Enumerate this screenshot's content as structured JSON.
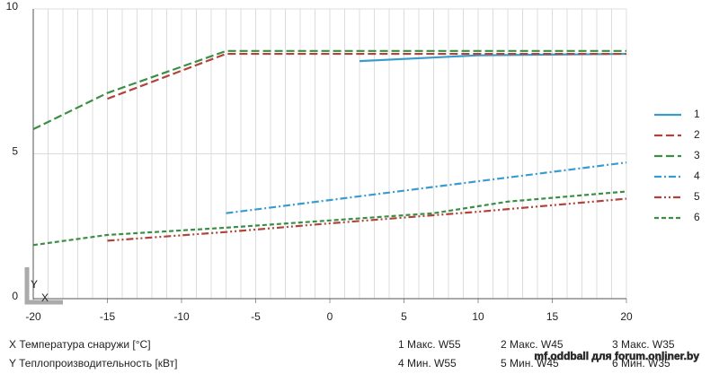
{
  "chart_data": {
    "type": "line",
    "xlim": [
      -20,
      20
    ],
    "xticks": [
      -20,
      -15,
      -10,
      -5,
      0,
      5,
      10,
      15,
      20
    ],
    "ylim": [
      0,
      10
    ],
    "yticks": [
      0,
      5,
      10
    ],
    "grid": true,
    "legend": "right",
    "series": [
      {
        "name": "1",
        "color": "#3b9ccc",
        "style": "solid",
        "x": [
          2,
          10,
          20
        ],
        "values": [
          8.2,
          8.4,
          8.45
        ]
      },
      {
        "name": "2",
        "color": "#b2433a",
        "style": "dash",
        "x": [
          -15,
          -7,
          20
        ],
        "values": [
          6.9,
          8.45,
          8.45
        ]
      },
      {
        "name": "3",
        "color": "#3a8f45",
        "style": "dash",
        "x": [
          -20,
          -15,
          -7,
          20
        ],
        "values": [
          5.85,
          7.1,
          8.55,
          8.55
        ]
      },
      {
        "name": "4",
        "color": "#3b9ccc",
        "style": "dashdot",
        "x": [
          -7,
          20
        ],
        "values": [
          2.95,
          4.7
        ]
      },
      {
        "name": "5",
        "color": "#b2433a",
        "style": "dashdotdot",
        "x": [
          -15,
          -7,
          0,
          10,
          20
        ],
        "values": [
          2.0,
          2.3,
          2.6,
          3.0,
          3.45
        ]
      },
      {
        "name": "6",
        "color": "#3a8f45",
        "style": "shortdash",
        "x": [
          -20,
          -15,
          -7,
          0,
          7,
          12,
          20
        ],
        "values": [
          1.85,
          2.2,
          2.45,
          2.7,
          2.95,
          3.35,
          3.7
        ]
      }
    ],
    "axis_marker": {
      "y": "Y",
      "x": "X"
    },
    "axis_notes": [
      "X Температура снаружи  [°C]",
      "Y Теплопроизводительность [кВт]"
    ],
    "series_notes": [
      "1 Макс. W55",
      "2 Макс. W45",
      "3 Макс. W35",
      "4 Мин. W55",
      "5 Мин. W45",
      "6 Мин. W35"
    ],
    "watermark": "mf.oddball для forum.onliner.by"
  }
}
